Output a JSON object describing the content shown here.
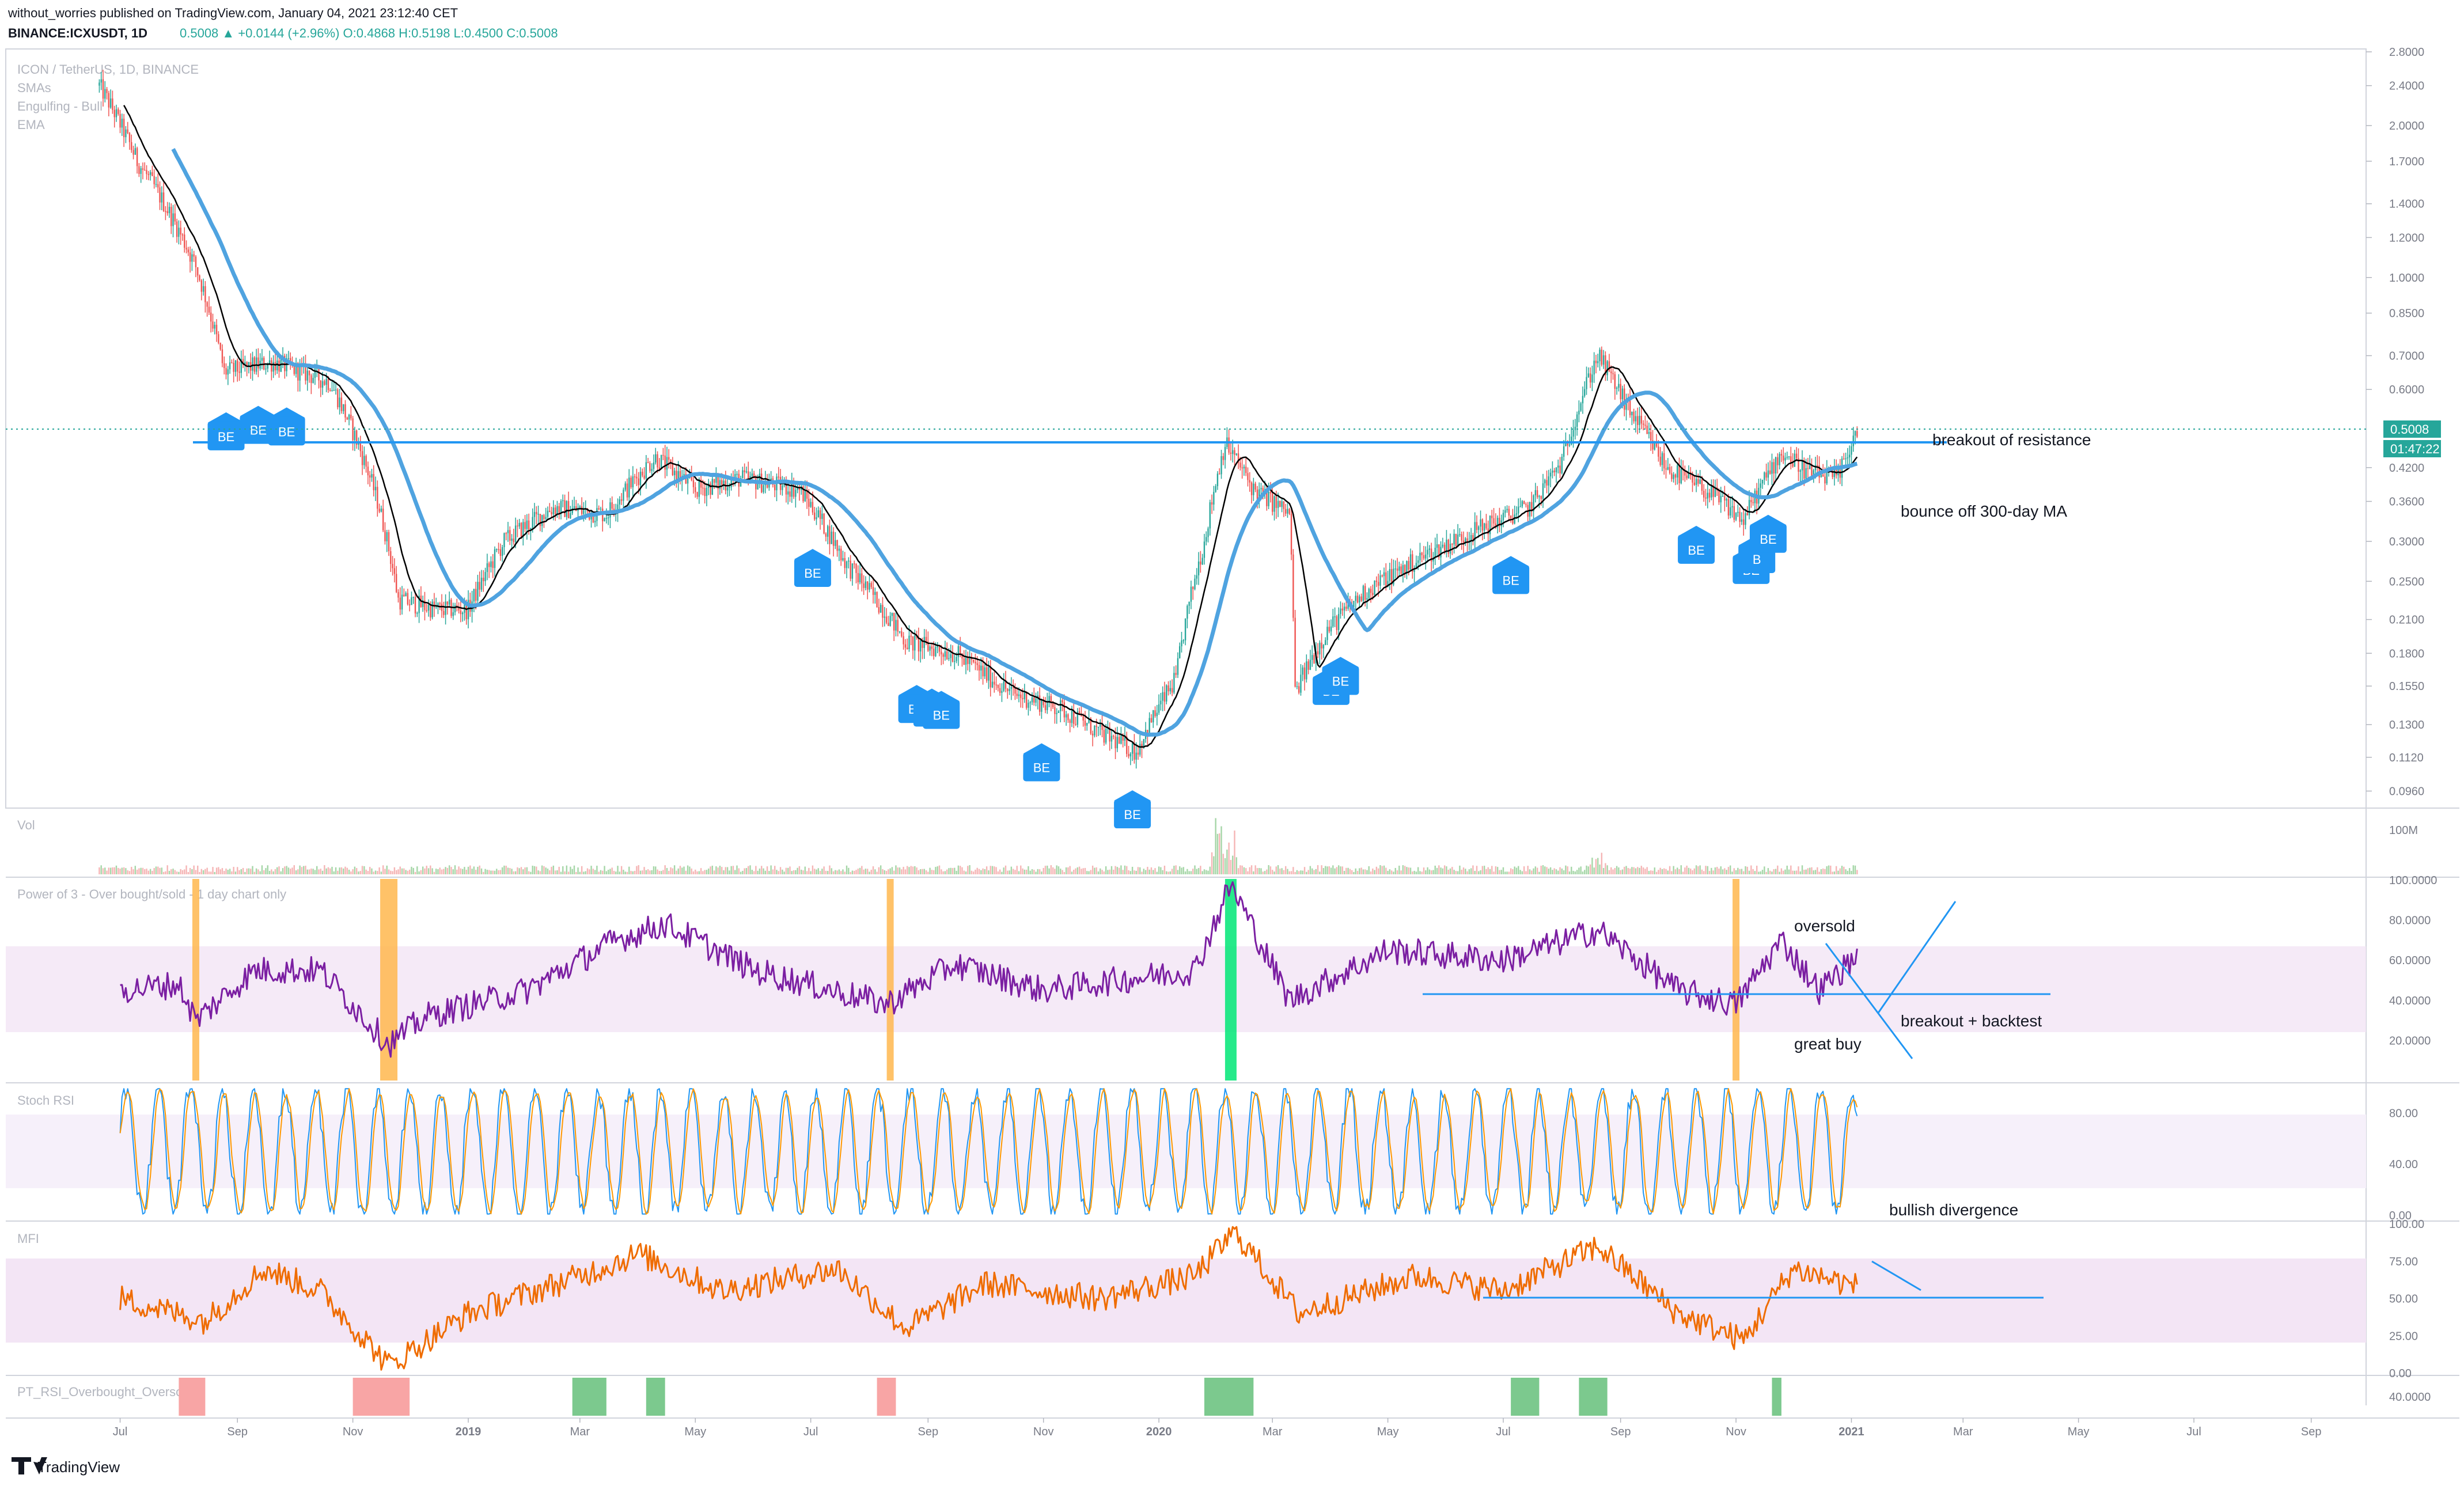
{
  "header": {
    "publisher_line": "without_worries published on TradingView.com, January 04, 2021 23:12:40 CET",
    "symbol": "BINANCE:ICXUSDT, 1D",
    "ohlc": "0.5008 ▲ +0.0144 (+2.96%) O:0.4868 H:0.5198 L:0.4500 C:0.5008"
  },
  "legend": [
    "ICON / TetherUS, 1D, BINANCE",
    "SMAs",
    "Engulfing - Bull",
    "EMA"
  ],
  "price_axis": {
    "ticks": [
      "2.8000",
      "2.4000",
      "2.0000",
      "1.7000",
      "1.4000",
      "1.2000",
      "1.0000",
      "0.8500",
      "0.7000",
      "0.6000",
      "0.5008",
      "0.4200",
      "0.3600",
      "0.3000",
      "0.2500",
      "0.2100",
      "0.1800",
      "0.1550",
      "0.1300",
      "0.1120",
      "0.0960"
    ],
    "last_price": "0.5008",
    "countdown": "01:47:22"
  },
  "time_axis": [
    "Jul",
    "Sep",
    "Nov",
    "2019",
    "Mar",
    "May",
    "Jul",
    "Sep",
    "Nov",
    "2020",
    "Mar",
    "May",
    "Jul",
    "Sep",
    "Nov",
    "2021",
    "Mar",
    "May",
    "Jul",
    "Sep"
  ],
  "panes": {
    "vol": {
      "title": "Vol",
      "ticks": [
        "100M"
      ]
    },
    "power3": {
      "title": "Power of 3 - Over bought/sold - 1 day chart only",
      "ticks": [
        "100.0000",
        "80.0000",
        "60.0000",
        "40.0000",
        "20.0000"
      ]
    },
    "stoch": {
      "title": "Stoch RSI",
      "ticks": [
        "80.00",
        "40.00",
        "0.00"
      ]
    },
    "mfi": {
      "title": "MFI",
      "ticks": [
        "100.00",
        "75.00",
        "50.00",
        "25.00",
        "0.00"
      ]
    },
    "ptrsi": {
      "title": "PT_RSI_Overbought_Oversold",
      "ticks": [
        "40.0000"
      ]
    }
  },
  "annotations": {
    "breakout": "breakout of resistance",
    "bounce": "bounce off 300-day MA",
    "oversold": "oversold",
    "great_buy": "great buy",
    "breakout_backtest": "breakout + backtest",
    "bullish_divergence": "bullish divergence"
  },
  "engulfing_marker": "BE",
  "engulfing_marker_partial": "B",
  "footer_brand": "TradingView",
  "colors": {
    "up": "#26a69a",
    "down": "#ef5350",
    "sma_blue": "#4fa3e0",
    "ema_black": "#000000",
    "power3_line": "#7b1fa2",
    "band_fill": "#f3e5f5",
    "mfi_line": "#ef6c00",
    "stoch_k": "#2196f3",
    "stoch_d": "#ff9800",
    "marker_blue": "#2196f3",
    "ob_orange": "#ffb74d",
    "os_green": "#00e676",
    "pt_red": "#f8a5a5",
    "pt_green": "#7cc98e",
    "price_tag": "#26a69a"
  },
  "chart_data": [
    {
      "type": "candlestick",
      "title": "ICON / TetherUS, 1D, BINANCE",
      "ylim": [
        0.09,
        2.8
      ],
      "log_scale": true,
      "x_range": [
        "2018-06",
        "2021-09"
      ],
      "anchors": [
        [
          "2018-06-20",
          2.4
        ],
        [
          "2018-07-10",
          1.7
        ],
        [
          "2018-08-10",
          1.05
        ],
        [
          "2018-08-25",
          0.65
        ],
        [
          "2018-09-20",
          0.68
        ],
        [
          "2018-10-20",
          0.62
        ],
        [
          "2018-11-15",
          0.35
        ],
        [
          "2018-11-25",
          0.23
        ],
        [
          "2018-12-15",
          0.22
        ],
        [
          "2019-01-01",
          0.22
        ],
        [
          "2019-01-20",
          0.3
        ],
        [
          "2019-02-15",
          0.35
        ],
        [
          "2019-03-15",
          0.34
        ],
        [
          "2019-04-10",
          0.44
        ],
        [
          "2019-05-01",
          0.38
        ],
        [
          "2019-05-25",
          0.4
        ],
        [
          "2019-06-25",
          0.38
        ],
        [
          "2019-07-20",
          0.27
        ],
        [
          "2019-08-20",
          0.19
        ],
        [
          "2019-09-15",
          0.18
        ],
        [
          "2019-10-15",
          0.15
        ],
        [
          "2019-11-10",
          0.14
        ],
        [
          "2019-12-01",
          0.125
        ],
        [
          "2019-12-20",
          0.115
        ],
        [
          "2020-01-10",
          0.16
        ],
        [
          "2020-01-25",
          0.3
        ],
        [
          "2020-02-05",
          0.47
        ],
        [
          "2020-02-20",
          0.38
        ],
        [
          "2020-03-10",
          0.34
        ],
        [
          "2020-03-13",
          0.15
        ],
        [
          "2020-03-30",
          0.2
        ],
        [
          "2020-04-20",
          0.24
        ],
        [
          "2020-05-20",
          0.28
        ],
        [
          "2020-06-20",
          0.32
        ],
        [
          "2020-07-15",
          0.35
        ],
        [
          "2020-08-01",
          0.43
        ],
        [
          "2020-08-20",
          0.7
        ],
        [
          "2020-09-05",
          0.55
        ],
        [
          "2020-09-25",
          0.42
        ],
        [
          "2020-10-20",
          0.37
        ],
        [
          "2020-11-05",
          0.33
        ],
        [
          "2020-11-25",
          0.45
        ],
        [
          "2020-12-10",
          0.41
        ],
        [
          "2020-12-25",
          0.4
        ],
        [
          "2021-01-04",
          0.5
        ]
      ],
      "series": [
        {
          "name": "SMA (black)"
        },
        {
          "name": "SMA 300 (blue)"
        }
      ],
      "resistance_level": 0.47,
      "engulfing_bull_markers": [
        {
          "date": "2018-08-26",
          "label": "BE"
        },
        {
          "date": "2018-09-12",
          "label": "BE"
        },
        {
          "date": "2018-09-27",
          "label": "BE"
        },
        {
          "date": "2019-07-02",
          "label": "BE"
        },
        {
          "date": "2019-08-26",
          "label": "BE"
        },
        {
          "date": "2019-09-03",
          "label": "B"
        },
        {
          "date": "2019-09-08",
          "label": "BE"
        },
        {
          "date": "2019-10-31",
          "label": "BE"
        },
        {
          "date": "2019-12-18",
          "label": "BE"
        },
        {
          "date": "2020-04-01",
          "label": "BE"
        },
        {
          "date": "2020-04-06",
          "label": "BE"
        },
        {
          "date": "2020-07-05",
          "label": "BE"
        },
        {
          "date": "2020-10-11",
          "label": "BE"
        },
        {
          "date": "2020-11-09",
          "label": "BE"
        },
        {
          "date": "2020-11-12",
          "label": "B"
        },
        {
          "date": "2020-11-18",
          "label": "BE"
        }
      ]
    },
    {
      "type": "line",
      "title": "Power of 3 - Over bought/sold - 1 day chart only",
      "ylim": [
        10,
        100
      ],
      "band": [
        30,
        70
      ],
      "anchors": [
        [
          "2018-07-01",
          45
        ],
        [
          "2018-08-01",
          48
        ],
        [
          "2018-08-10",
          30
        ],
        [
          "2018-09-10",
          55
        ],
        [
          "2018-10-15",
          55
        ],
        [
          "2018-11-20",
          18
        ],
        [
          "2018-12-10",
          32
        ],
        [
          "2019-02-01",
          45
        ],
        [
          "2019-03-20",
          70
        ],
        [
          "2019-04-15",
          78
        ],
        [
          "2019-06-01",
          55
        ],
        [
          "2019-08-10",
          38
        ],
        [
          "2019-09-15",
          58
        ],
        [
          "2019-11-01",
          45
        ],
        [
          "2020-01-20",
          55
        ],
        [
          "2020-02-08",
          98
        ],
        [
          "2020-03-10",
          40
        ],
        [
          "2020-05-01",
          65
        ],
        [
          "2020-07-01",
          60
        ],
        [
          "2020-08-20",
          75
        ],
        [
          "2020-10-01",
          45
        ],
        [
          "2020-11-01",
          38
        ],
        [
          "2020-11-25",
          70
        ],
        [
          "2020-12-15",
          45
        ],
        [
          "2021-01-04",
          62
        ]
      ],
      "threshold_line": 47,
      "ob_os_bars": [
        {
          "date": "2018-08-10",
          "color": "orange"
        },
        {
          "date": "2018-11-20",
          "color": "orange"
        },
        {
          "date": "2019-08-12",
          "color": "orange"
        },
        {
          "date": "2020-02-08",
          "color": "green"
        },
        {
          "date": "2020-11-01",
          "color": "orange"
        }
      ]
    },
    {
      "type": "line",
      "title": "Stoch RSI",
      "ylim": [
        0,
        100
      ],
      "band": [
        20,
        80
      ],
      "series": [
        {
          "name": "K"
        },
        {
          "name": "D"
        }
      ]
    },
    {
      "type": "line",
      "title": "MFI",
      "ylim": [
        0,
        100
      ],
      "band": [
        20,
        80
      ],
      "anchors": [
        [
          "2018-07-01",
          50
        ],
        [
          "2018-08-15",
          35
        ],
        [
          "2018-09-15",
          70
        ],
        [
          "2018-10-15",
          55
        ],
        [
          "2018-11-20",
          5
        ],
        [
          "2019-01-01",
          40
        ],
        [
          "2019-03-01",
          65
        ],
        [
          "2019-04-01",
          80
        ],
        [
          "2019-05-15",
          55
        ],
        [
          "2019-07-15",
          70
        ],
        [
          "2019-08-20",
          30
        ],
        [
          "2019-10-01",
          60
        ],
        [
          "2019-12-01",
          50
        ],
        [
          "2020-01-20",
          65
        ],
        [
          "2020-02-10",
          95
        ],
        [
          "2020-03-15",
          40
        ],
        [
          "2020-05-15",
          65
        ],
        [
          "2020-07-01",
          55
        ],
        [
          "2020-08-20",
          85
        ],
        [
          "2020-10-01",
          40
        ],
        [
          "2020-11-05",
          22
        ],
        [
          "2020-12-01",
          70
        ],
        [
          "2021-01-04",
          58
        ]
      ],
      "threshold_line": 55
    },
    {
      "type": "bar",
      "title": "PT_RSI_Overbought_Oversold",
      "red_blocks": [
        [
          "2018-08-01",
          "2018-08-15"
        ],
        [
          "2018-11-01",
          "2018-12-01"
        ],
        [
          "2019-08-05",
          "2019-08-15"
        ]
      ],
      "green_blocks": [
        [
          "2019-02-25",
          "2019-03-15"
        ],
        [
          "2019-04-05",
          "2019-04-15"
        ],
        [
          "2020-01-25",
          "2020-02-20"
        ],
        [
          "2020-07-05",
          "2020-07-20"
        ],
        [
          "2020-08-10",
          "2020-08-25"
        ],
        [
          "2020-11-20",
          "2020-11-25"
        ]
      ]
    }
  ]
}
